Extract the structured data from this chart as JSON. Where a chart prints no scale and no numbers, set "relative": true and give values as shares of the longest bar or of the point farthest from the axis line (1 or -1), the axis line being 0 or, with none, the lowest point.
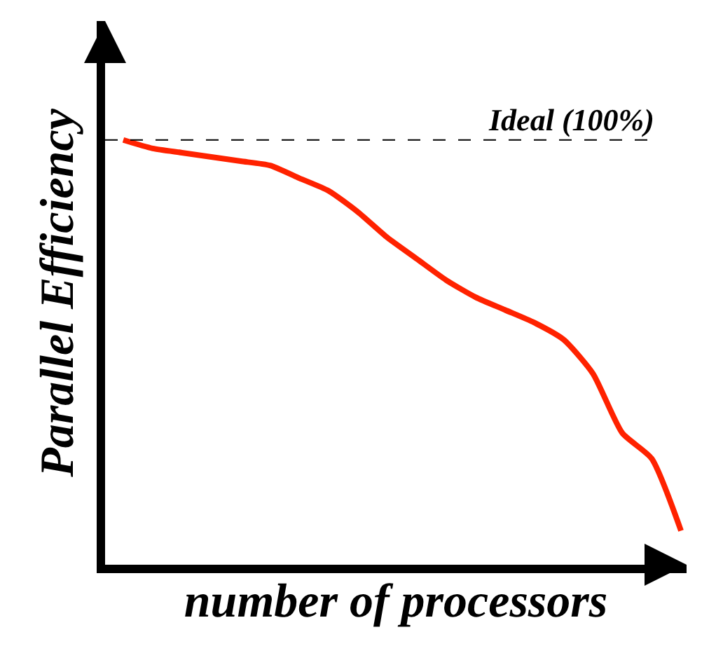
{
  "chart_data": {
    "type": "line",
    "relative": true,
    "xlabel": "number of processors",
    "ylabel": "Parallel Efficiency",
    "categories": [
      null,
      null,
      null,
      null,
      null,
      null,
      null,
      null,
      null,
      null,
      null,
      null,
      null,
      null,
      null,
      null,
      null,
      null,
      null,
      null
    ],
    "series": [
      {
        "color": "#ff2200",
        "values": [
          1.0,
          0.98,
          0.97,
          0.96,
          0.95,
          0.94,
          0.91,
          0.88,
          0.83,
          0.77,
          0.72,
          0.67,
          0.63,
          0.6,
          0.57,
          0.53,
          0.45,
          0.31,
          0.25,
          0.08
        ]
      }
    ],
    "ref_lines": [
      {
        "axis": "y",
        "value": 1.0,
        "label": "Ideal (100%)",
        "color": "#000000",
        "line_style": "dashed"
      }
    ],
    "marker": "none",
    "line_style": "solid"
  }
}
